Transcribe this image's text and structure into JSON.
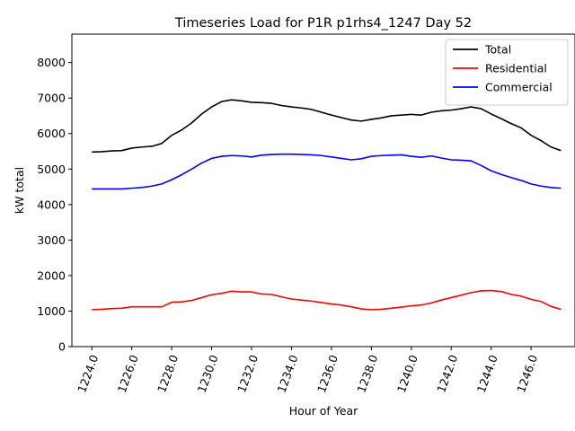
{
  "chart_data": {
    "type": "line",
    "title": "Timeseries Load for P1R p1rhs4_1247  Day 52",
    "xlabel": "Hour of Year",
    "ylabel": "kW total",
    "xlim": [
      1223,
      1248.2
    ],
    "ylim": [
      0,
      8800
    ],
    "x_ticks": [
      1224,
      1226,
      1228,
      1230,
      1232,
      1234,
      1236,
      1238,
      1240,
      1242,
      1244,
      1246
    ],
    "x_tick_labels": [
      "1224.0",
      "1226.0",
      "1228.0",
      "1230.0",
      "1232.0",
      "1234.0",
      "1236.0",
      "1238.0",
      "1240.0",
      "1242.0",
      "1244.0",
      "1246.0"
    ],
    "y_ticks": [
      0,
      1000,
      2000,
      3000,
      4000,
      5000,
      6000,
      7000,
      8000
    ],
    "y_tick_labels": [
      "0",
      "1000",
      "2000",
      "3000",
      "4000",
      "5000",
      "6000",
      "7000",
      "8000"
    ],
    "legend_position": "top-right",
    "grid": false,
    "x": [
      1224.0,
      1224.5,
      1225.0,
      1225.5,
      1226.0,
      1226.5,
      1227.0,
      1227.5,
      1228.0,
      1228.5,
      1229.0,
      1229.5,
      1230.0,
      1230.5,
      1231.0,
      1231.5,
      1232.0,
      1232.5,
      1233.0,
      1233.5,
      1234.0,
      1234.5,
      1235.0,
      1235.5,
      1236.0,
      1236.5,
      1237.0,
      1237.5,
      1238.0,
      1238.5,
      1239.0,
      1239.5,
      1240.0,
      1240.5,
      1241.0,
      1241.5,
      1242.0,
      1242.5,
      1243.0,
      1243.5,
      1244.0,
      1244.5,
      1245.0,
      1245.5,
      1246.0,
      1246.5,
      1247.0,
      1247.5
    ],
    "series": [
      {
        "name": "Total",
        "color": "#000000",
        "values": [
          5480,
          5490,
          5510,
          5520,
          5590,
          5620,
          5640,
          5720,
          5950,
          6100,
          6300,
          6550,
          6750,
          6900,
          6950,
          6920,
          6880,
          6870,
          6850,
          6790,
          6750,
          6720,
          6680,
          6600,
          6520,
          6450,
          6380,
          6350,
          6400,
          6440,
          6500,
          6520,
          6540,
          6520,
          6600,
          6640,
          6660,
          6700,
          6750,
          6700,
          6550,
          6420,
          6280,
          6160,
          5950,
          5800,
          5620,
          5520
        ]
      },
      {
        "name": "Residential",
        "color": "#ff0000",
        "values": [
          1040,
          1050,
          1070,
          1080,
          1120,
          1120,
          1120,
          1120,
          1250,
          1260,
          1300,
          1380,
          1460,
          1500,
          1560,
          1540,
          1540,
          1480,
          1470,
          1400,
          1340,
          1310,
          1280,
          1240,
          1200,
          1170,
          1120,
          1060,
          1040,
          1050,
          1080,
          1110,
          1150,
          1170,
          1230,
          1310,
          1380,
          1450,
          1520,
          1570,
          1580,
          1550,
          1470,
          1420,
          1330,
          1270,
          1130,
          1050
        ]
      },
      {
        "name": "Commercial",
        "color": "#0000ff",
        "values": [
          4440,
          4440,
          4440,
          4440,
          4460,
          4480,
          4520,
          4580,
          4700,
          4840,
          5000,
          5170,
          5300,
          5360,
          5380,
          5370,
          5340,
          5390,
          5410,
          5420,
          5420,
          5410,
          5400,
          5380,
          5340,
          5300,
          5260,
          5290,
          5360,
          5380,
          5390,
          5400,
          5360,
          5330,
          5370,
          5310,
          5260,
          5250,
          5230,
          5100,
          4950,
          4850,
          4760,
          4680,
          4580,
          4520,
          4480,
          4460
        ]
      }
    ]
  }
}
